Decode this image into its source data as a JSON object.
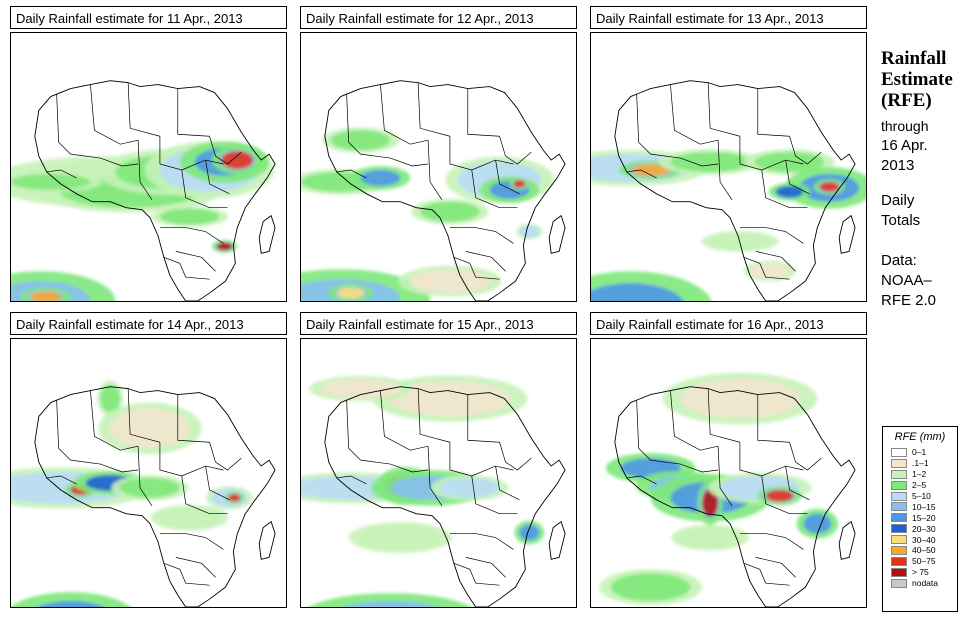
{
  "panels": [
    {
      "title": "Daily Rainfall estimate for  11 Apr., 2013"
    },
    {
      "title": "Daily Rainfall estimate for  12 Apr., 2013"
    },
    {
      "title": "Daily Rainfall estimate for  13 Apr., 2013"
    },
    {
      "title": "Daily Rainfall estimate for  14 Apr., 2013"
    },
    {
      "title": "Daily Rainfall estimate for  15 Apr., 2013"
    },
    {
      "title": "Daily Rainfall estimate for  16 Apr., 2013"
    }
  ],
  "sidebar": {
    "title_line1": "Rainfall",
    "title_line2": "Estimate",
    "title_line3": "(RFE)",
    "through_line1": "through",
    "through_line2": "16 Apr.",
    "through_line3": "2013",
    "period_line1": "Daily",
    "period_line2": "Totals",
    "data_line1": "Data:",
    "data_line2": "NOAA–",
    "data_line3": "RFE 2.0"
  },
  "legend": {
    "title": "RFE (mm)",
    "items": [
      {
        "label": "0–1",
        "color": "#ffffff"
      },
      {
        "label": ".1–1",
        "color": "#f2e4cf"
      },
      {
        "label": "1–2",
        "color": "#c6f2b8"
      },
      {
        "label": "2–5",
        "color": "#7ee87a"
      },
      {
        "label": "5–10",
        "color": "#b9dcf7"
      },
      {
        "label": "10–15",
        "color": "#86bff0"
      },
      {
        "label": "15–20",
        "color": "#4f97e6"
      },
      {
        "label": "20–30",
        "color": "#1f5fd6"
      },
      {
        "label": "30–40",
        "color": "#f7e07a"
      },
      {
        "label": "40–50",
        "color": "#f7a733"
      },
      {
        "label": "50–75",
        "color": "#e0341c"
      },
      {
        "label": "> 75",
        "color": "#b01010"
      },
      {
        "label": "nodata",
        "color": "#c8c8c8"
      }
    ]
  }
}
